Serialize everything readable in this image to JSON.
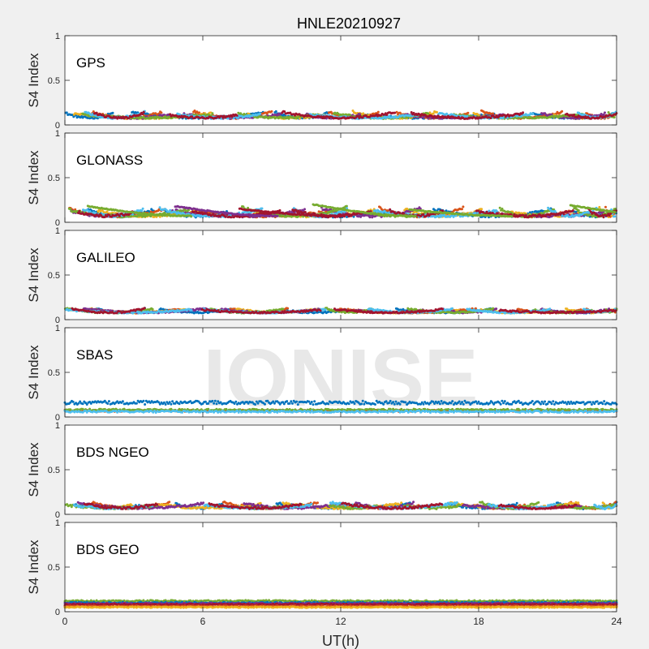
{
  "figure": {
    "title": "HNLE20210927",
    "xlabel": "UT(h)",
    "watermark": "IONISE"
  },
  "colors": {
    "figure_bg": "#f0f0f0",
    "axes_bg": "#ffffff",
    "axes_edge": "#262626",
    "tick_text": "#262626",
    "watermark": "#e8e8e8",
    "series": [
      "#0072bd",
      "#d95319",
      "#edb120",
      "#7e2f8e",
      "#77ac30",
      "#4dbeee",
      "#a2142f"
    ]
  },
  "chart_data": [
    {
      "type": "scatter",
      "panel_label": "GPS",
      "ylabel": "S4 Index",
      "ylim": [
        0,
        1
      ],
      "yticks": [
        "0",
        "0.5",
        "1"
      ],
      "xlim": [
        0,
        24
      ],
      "xticks": [
        0,
        6,
        12,
        18,
        24
      ],
      "xticklabels_visible": false,
      "s4_baseline": 0.08,
      "s4_spread": 0.04,
      "s4_max_observed": 0.17
    },
    {
      "type": "scatter",
      "panel_label": "GLONASS",
      "ylabel": "S4 Index",
      "ylim": [
        0,
        1
      ],
      "yticks": [
        "0",
        "0.5",
        "1"
      ],
      "xlim": [
        0,
        24
      ],
      "xticks": [
        0,
        6,
        12,
        18,
        24
      ],
      "xticklabels_visible": false,
      "s4_baseline": 0.07,
      "s4_spread": 0.05,
      "s4_max_observed": 0.2,
      "arc_peaks": [
        {
          "x": 1.0,
          "y": 0.18
        },
        {
          "x": 4.8,
          "y": 0.18
        },
        {
          "x": 7.6,
          "y": 0.15
        },
        {
          "x": 10.8,
          "y": 0.2
        },
        {
          "x": 15.0,
          "y": 0.14
        },
        {
          "x": 22.0,
          "y": 0.19
        }
      ]
    },
    {
      "type": "scatter",
      "panel_label": "GALILEO",
      "ylabel": "S4 Index",
      "ylim": [
        0,
        1
      ],
      "yticks": [
        "0",
        "0.5",
        "1"
      ],
      "xlim": [
        0,
        24
      ],
      "xticks": [
        0,
        6,
        12,
        18,
        24
      ],
      "xticklabels_visible": false,
      "s4_baseline": 0.08,
      "s4_spread": 0.03,
      "s4_max_observed": 0.14
    },
    {
      "type": "scatter",
      "panel_label": "SBAS",
      "ylabel": "S4 Index",
      "ylim": [
        0,
        1
      ],
      "yticks": [
        "0",
        "0.5",
        "1"
      ],
      "xlim": [
        0,
        24
      ],
      "xticks": [
        0,
        6,
        12,
        18,
        24
      ],
      "xticklabels_visible": false,
      "series_levels": [
        {
          "color_index": 0,
          "level": 0.16,
          "noise": 0.02
        },
        {
          "color_index": 1,
          "level": 0.07,
          "noise": 0.01
        },
        {
          "color_index": 4,
          "level": 0.08,
          "noise": 0.01
        },
        {
          "color_index": 5,
          "level": 0.06,
          "noise": 0.01
        }
      ]
    },
    {
      "type": "scatter",
      "panel_label": "BDS NGEO",
      "ylabel": "S4 Index",
      "ylim": [
        0,
        1
      ],
      "yticks": [
        "0",
        "0.5",
        "1"
      ],
      "xlim": [
        0,
        24
      ],
      "xticks": [
        0,
        6,
        12,
        18,
        24
      ],
      "xticklabels_visible": false,
      "s4_baseline": 0.07,
      "s4_spread": 0.04,
      "s4_max_observed": 0.16
    },
    {
      "type": "scatter",
      "panel_label": "BDS GEO",
      "ylabel": "S4 Index",
      "ylim": [
        0,
        1
      ],
      "yticks": [
        "0",
        "0.5",
        "1"
      ],
      "xlim": [
        0,
        24
      ],
      "xticks": [
        0,
        6,
        12,
        18,
        24
      ],
      "xticklabels": [
        "0",
        "6",
        "12",
        "18",
        "24"
      ],
      "xticklabels_visible": true,
      "series_levels": [
        {
          "color_index": 4,
          "level": 0.12,
          "noise": 0.008
        },
        {
          "color_index": 0,
          "level": 0.1,
          "noise": 0.008
        },
        {
          "color_index": 3,
          "level": 0.09,
          "noise": 0.008
        },
        {
          "color_index": 6,
          "level": 0.08,
          "noise": 0.008
        },
        {
          "color_index": 1,
          "level": 0.06,
          "noise": 0.006
        },
        {
          "color_index": 2,
          "level": 0.05,
          "noise": 0.006
        }
      ]
    }
  ]
}
